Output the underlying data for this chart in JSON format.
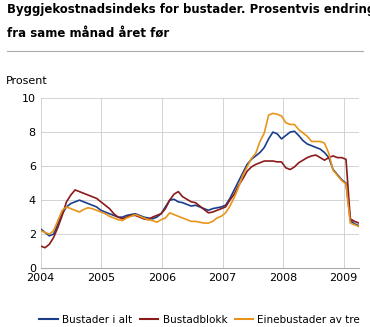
{
  "title_line1": "Byggjekostnadsindeks for bustader. Prosentvis endring",
  "title_line2": "fra same månad året før",
  "ylabel": "Prosent",
  "ylim": [
    0,
    10
  ],
  "yticks": [
    0,
    2,
    4,
    6,
    8,
    10
  ],
  "xlim_start": 2004.0,
  "xlim_end": 2009.25,
  "legend": [
    "Bustader i alt",
    "Bustadblokk",
    "Einebustader av tre"
  ],
  "colors": [
    "#1a3e8c",
    "#8b1a1a",
    "#e8941a"
  ],
  "linewidth": 1.2,
  "bustader_i_alt": [
    2.3,
    2.1,
    1.9,
    2.0,
    2.6,
    3.2,
    3.6,
    3.8,
    3.9,
    4.0,
    3.9,
    3.8,
    3.7,
    3.6,
    3.4,
    3.3,
    3.2,
    3.1,
    3.0,
    3.0,
    3.1,
    3.15,
    3.2,
    3.1,
    3.0,
    2.95,
    2.9,
    3.0,
    3.2,
    3.6,
    4.0,
    4.05,
    3.9,
    3.85,
    3.75,
    3.65,
    3.7,
    3.6,
    3.5,
    3.4,
    3.5,
    3.55,
    3.6,
    3.7,
    4.1,
    4.6,
    5.1,
    5.6,
    6.1,
    6.4,
    6.6,
    6.8,
    7.1,
    7.6,
    8.0,
    7.9,
    7.6,
    7.8,
    8.0,
    8.05,
    7.8,
    7.5,
    7.3,
    7.2,
    7.1,
    7.0,
    6.8,
    6.5,
    5.8,
    5.5,
    5.2,
    5.0,
    2.8,
    2.6,
    2.5
  ],
  "bustadblokk": [
    1.3,
    1.2,
    1.4,
    1.8,
    2.4,
    3.1,
    3.9,
    4.3,
    4.6,
    4.5,
    4.4,
    4.3,
    4.2,
    4.1,
    3.9,
    3.7,
    3.5,
    3.2,
    3.0,
    2.9,
    3.0,
    3.1,
    3.1,
    3.0,
    2.9,
    2.85,
    3.0,
    3.1,
    3.2,
    3.5,
    4.0,
    4.35,
    4.5,
    4.2,
    4.05,
    3.9,
    3.85,
    3.65,
    3.45,
    3.25,
    3.3,
    3.4,
    3.5,
    3.6,
    4.0,
    4.35,
    4.85,
    5.25,
    5.7,
    5.95,
    6.1,
    6.2,
    6.3,
    6.3,
    6.3,
    6.25,
    6.25,
    5.9,
    5.8,
    5.95,
    6.2,
    6.35,
    6.5,
    6.6,
    6.65,
    6.5,
    6.35,
    6.5,
    6.6,
    6.5,
    6.5,
    6.4,
    2.9,
    2.75,
    2.65
  ],
  "einebustader": [
    2.2,
    2.1,
    2.0,
    2.2,
    2.8,
    3.4,
    3.6,
    3.5,
    3.4,
    3.3,
    3.45,
    3.55,
    3.5,
    3.4,
    3.3,
    3.2,
    3.05,
    2.95,
    2.85,
    2.8,
    2.95,
    3.05,
    3.15,
    3.05,
    2.95,
    2.85,
    2.8,
    2.7,
    2.85,
    2.95,
    3.25,
    3.15,
    3.05,
    2.95,
    2.85,
    2.75,
    2.75,
    2.7,
    2.65,
    2.65,
    2.75,
    2.95,
    3.05,
    3.25,
    3.65,
    4.15,
    4.75,
    5.45,
    5.95,
    6.45,
    6.75,
    7.45,
    7.95,
    9.0,
    9.1,
    9.05,
    8.95,
    8.55,
    8.45,
    8.45,
    8.15,
    7.95,
    7.75,
    7.45,
    7.45,
    7.45,
    7.35,
    6.75,
    5.75,
    5.45,
    5.15,
    4.95,
    2.65,
    2.55,
    2.45
  ],
  "n_points": 75,
  "start_year": 2004.0,
  "end_year": 2009.25,
  "xtick_positions": [
    2004,
    2005,
    2006,
    2007,
    2008,
    2009
  ],
  "xtick_labels": [
    "2004",
    "2005",
    "2006",
    "2007",
    "2008",
    "2009"
  ],
  "bg_color": "#ffffff",
  "grid_color": "#cccccc"
}
